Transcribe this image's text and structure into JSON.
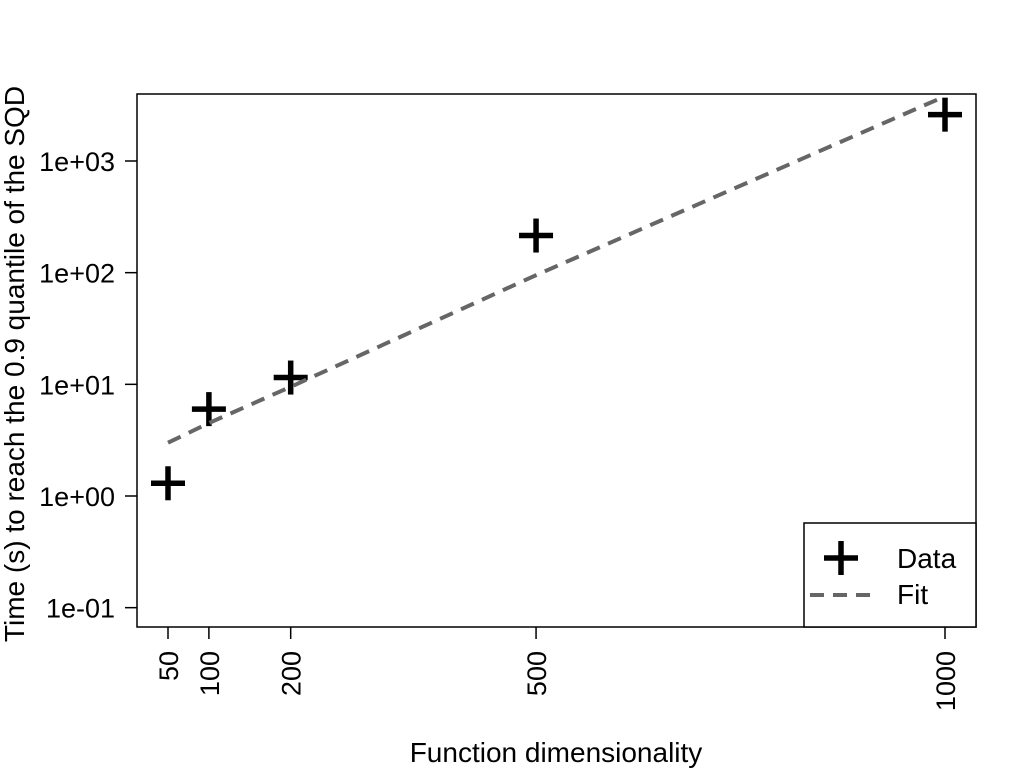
{
  "chart_data": {
    "type": "scatter",
    "xlabel": "Function dimensionality",
    "ylabel": "Time (s) to reach the 0.9 quantile of the SQD",
    "x_scale": "linear",
    "y_scale": "log",
    "xlim": [
      50,
      1000
    ],
    "ylim_log10": [
      -1.5,
      3.6
    ],
    "x_ticks": [
      50,
      100,
      200,
      500,
      1000
    ],
    "x_tick_labels": [
      "50",
      "100",
      "200",
      "500",
      "1000"
    ],
    "y_ticks": [
      0.1,
      1,
      10,
      100,
      1000
    ],
    "y_tick_labels": [
      "1e-01",
      "1e+00",
      "1e+01",
      "1e+02",
      "1e+03"
    ],
    "grid": false,
    "legend_position": "bottom-right",
    "series": [
      {
        "name": "Data",
        "kind": "points",
        "marker": "plus",
        "color": "#000000",
        "x": [
          50,
          100,
          200,
          500,
          1000
        ],
        "y": [
          1.3,
          6.0,
          11.5,
          215,
          2600
        ]
      },
      {
        "name": "Fit",
        "kind": "line",
        "style": "dashed",
        "color": "#666666",
        "x": [
          50,
          100,
          200,
          500,
          1000
        ],
        "y": [
          3.0,
          4.5,
          9.5,
          95,
          3800
        ]
      }
    ]
  }
}
